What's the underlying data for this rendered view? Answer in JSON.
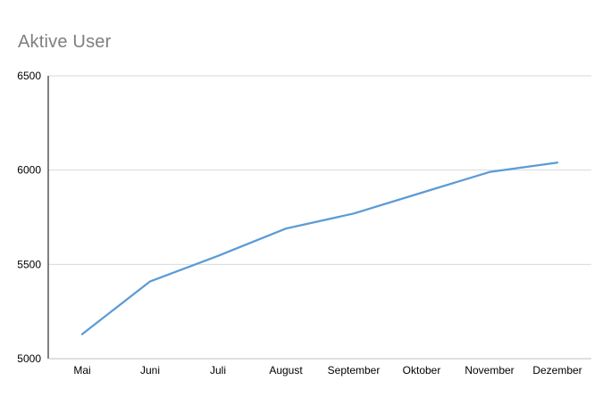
{
  "chart_data": {
    "type": "line",
    "title": "Aktive User",
    "xlabel": "",
    "ylabel": "",
    "categories": [
      "Mai",
      "Juni",
      "Juli",
      "August",
      "September",
      "Oktober",
      "November",
      "Dezember"
    ],
    "series": [
      {
        "values": [
          5130,
          5410,
          5545,
          5690,
          5770,
          5880,
          5990,
          6040
        ],
        "color": "#5b9bd5"
      }
    ],
    "ylim": [
      5000,
      6500
    ],
    "yticks": [
      5000,
      5500,
      6000,
      6500
    ],
    "grid": true,
    "legend": "none"
  }
}
